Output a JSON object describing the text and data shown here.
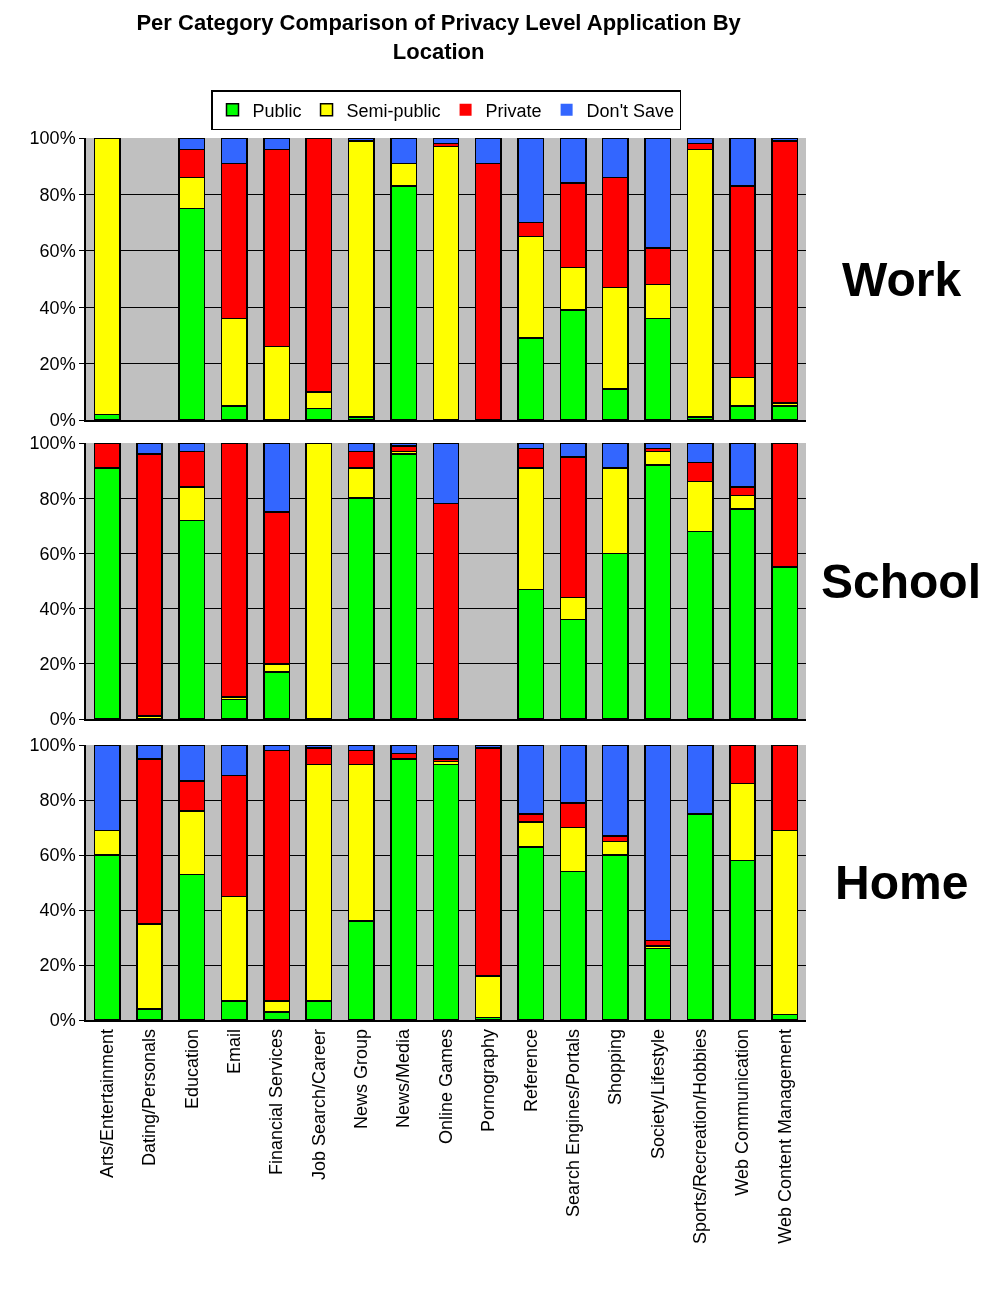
{
  "chart_data": [
    {
      "type": "bar",
      "title": "Per Category Comparison of Privacy Level Application By Location",
      "annotations": [
        "Work"
      ],
      "stacked": true,
      "legend": "top",
      "grid": "y",
      "tick_labels": "y",
      "categories": [
        "Arts/Entertainment",
        "Dating/Personals",
        "Education",
        "Email",
        "Financial Services",
        "Job Search/Career",
        "News Group",
        "News/Media",
        "Online Games",
        "Pornography",
        "Reference",
        "Search Engines/Portals",
        "Shopping",
        "Society/Lifestyle",
        "Sports/Recreation/Hobbies",
        "Web Communication",
        "Web Content Management"
      ],
      "ylim": [
        0,
        100
      ],
      "yticks": [
        {
          "value": 0,
          "label": "0%"
        },
        {
          "value": 20,
          "label": "20%"
        },
        {
          "value": 40,
          "label": "40%"
        },
        {
          "value": 60,
          "label": "60%"
        },
        {
          "value": 80,
          "label": "80%"
        },
        {
          "value": 100,
          "label": "100%"
        }
      ],
      "series": [
        {
          "name": "Public",
          "color": "#00ff00",
          "values": [
            2,
            null,
            75,
            5,
            0,
            4,
            1,
            83,
            0,
            0,
            29,
            39,
            11,
            36,
            1,
            5,
            5
          ]
        },
        {
          "name": "Semi-public",
          "color": "#ffff00",
          "values": [
            98,
            null,
            11,
            31,
            26,
            6,
            98,
            8,
            97,
            0,
            36,
            15,
            36,
            12,
            95,
            10,
            1
          ]
        },
        {
          "name": "Private",
          "color": "#ff0000",
          "values": [
            0,
            null,
            10,
            55,
            70,
            90,
            0,
            0,
            1,
            91,
            5,
            30,
            39,
            13,
            2,
            68,
            93
          ]
        },
        {
          "name": "Don't Save",
          "color": "#3366ff",
          "values": [
            0,
            null,
            4,
            9,
            4,
            0,
            1,
            9,
            2,
            9,
            30,
            16,
            14,
            39,
            2,
            17,
            1
          ]
        }
      ]
    },
    {
      "type": "bar",
      "annotations": [
        "School"
      ],
      "stacked": true,
      "grid": "y",
      "tick_labels": "y",
      "categories": [
        "Arts/Entertainment",
        "Dating/Personals",
        "Education",
        "Email",
        "Financial Services",
        "Job Search/Career",
        "News Group",
        "News/Media",
        "Online Games",
        "Pornography",
        "Reference",
        "Search Engines/Portals",
        "Shopping",
        "Society/Lifestyle",
        "Sports/Recreation/Hobbies",
        "Web Communication",
        "Web Content Management"
      ],
      "ylim": [
        0,
        100
      ],
      "yticks": [
        {
          "value": 0,
          "label": "0%"
        },
        {
          "value": 20,
          "label": "20%"
        },
        {
          "value": 40,
          "label": "40%"
        },
        {
          "value": 60,
          "label": "60%"
        },
        {
          "value": 80,
          "label": "80%"
        },
        {
          "value": 100,
          "label": "100%"
        }
      ],
      "series": [
        {
          "name": "Public",
          "color": "#00ff00",
          "values": [
            91,
            0,
            72,
            7,
            17,
            0,
            80,
            96,
            0,
            null,
            47,
            36,
            60,
            92,
            68,
            76,
            55
          ]
        },
        {
          "name": "Semi-public",
          "color": "#ffff00",
          "values": [
            0,
            1,
            12,
            1,
            3,
            100,
            11,
            1,
            0,
            null,
            44,
            8,
            31,
            5,
            18,
            5,
            0
          ]
        },
        {
          "name": "Private",
          "color": "#ff0000",
          "values": [
            9,
            95,
            13,
            92,
            55,
            0,
            6,
            2,
            78,
            null,
            7,
            51,
            0,
            1,
            7,
            3,
            45
          ]
        },
        {
          "name": "Don't Save",
          "color": "#3366ff",
          "values": [
            0,
            4,
            3,
            0,
            25,
            0,
            3,
            1,
            22,
            null,
            2,
            5,
            9,
            2,
            7,
            16,
            0
          ]
        }
      ]
    },
    {
      "type": "bar",
      "annotations": [
        "Home"
      ],
      "stacked": true,
      "grid": "y",
      "categories": [
        "Arts/Entertainment",
        "Dating/Personals",
        "Education",
        "Email",
        "Financial Services",
        "Job Search/Career",
        "News Group",
        "News/Media",
        "Online Games",
        "Pornography",
        "Reference",
        "Search Engines/Portals",
        "Shopping",
        "Society/Lifestyle",
        "Sports/Recreation/Hobbies",
        "Web Communication",
        "Web Content Management"
      ],
      "ylim": [
        0,
        100
      ],
      "yticks": [
        {
          "value": 0,
          "label": "0%"
        },
        {
          "value": 20,
          "label": "20%"
        },
        {
          "value": 40,
          "label": "40%"
        },
        {
          "value": 60,
          "label": "60%"
        },
        {
          "value": 80,
          "label": "80%"
        },
        {
          "value": 100,
          "label": "100%"
        }
      ],
      "series": [
        {
          "name": "Public",
          "color": "#00ff00",
          "values": [
            60,
            4,
            53,
            7,
            3,
            7,
            36,
            95,
            93,
            1,
            63,
            54,
            60,
            26,
            75,
            58,
            2
          ]
        },
        {
          "name": "Semi-public",
          "color": "#ffff00",
          "values": [
            9,
            31,
            23,
            38,
            4,
            86,
            57,
            0,
            1,
            15,
            9,
            16,
            5,
            1,
            0,
            28,
            67
          ]
        },
        {
          "name": "Private",
          "color": "#ff0000",
          "values": [
            0,
            60,
            11,
            44,
            91,
            6,
            5,
            2,
            1,
            83,
            3,
            9,
            2,
            2,
            0,
            14,
            31
          ]
        },
        {
          "name": "Don't Save",
          "color": "#3366ff",
          "values": [
            31,
            5,
            13,
            11,
            2,
            1,
            2,
            3,
            5,
            1,
            25,
            21,
            33,
            71,
            25,
            0,
            0
          ]
        }
      ]
    }
  ]
}
